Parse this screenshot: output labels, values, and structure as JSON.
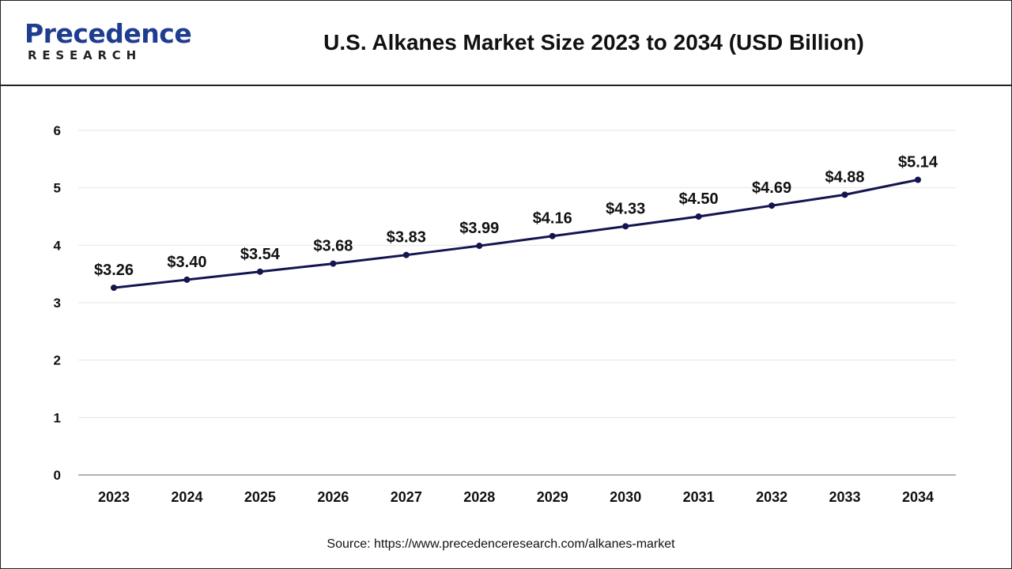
{
  "header": {
    "logo_main": "Precedence",
    "logo_sub": "RESEARCH",
    "title": "U.S. Alkanes Market Size 2023 to 2034 (USD Billion)"
  },
  "source": "Source: https://www.precedenceresearch.com/alkanes-market",
  "colors": {
    "line": "#14144f",
    "grid": "#e6e6e6",
    "text": "#111111",
    "brand": "#1f3d8f"
  },
  "chart_data": {
    "type": "line",
    "title": "U.S. Alkanes Market Size 2023 to 2034 (USD Billion)",
    "xlabel": "",
    "ylabel": "",
    "categories": [
      "2023",
      "2024",
      "2025",
      "2026",
      "2027",
      "2028",
      "2029",
      "2030",
      "2031",
      "2032",
      "2033",
      "2034"
    ],
    "values": [
      3.26,
      3.4,
      3.54,
      3.68,
      3.83,
      3.99,
      4.16,
      4.33,
      4.5,
      4.69,
      4.88,
      5.14
    ],
    "labels": [
      "$3.26",
      "$3.40",
      "$3.54",
      "$3.68",
      "$3.83",
      "$3.99",
      "$4.16",
      "$4.33",
      "$4.50",
      "$4.69",
      "$4.88",
      "$5.14"
    ],
    "ylim": [
      0,
      6
    ],
    "yticks": [
      0,
      1,
      2,
      3,
      4,
      5,
      6
    ],
    "grid": true,
    "legend": "none"
  }
}
